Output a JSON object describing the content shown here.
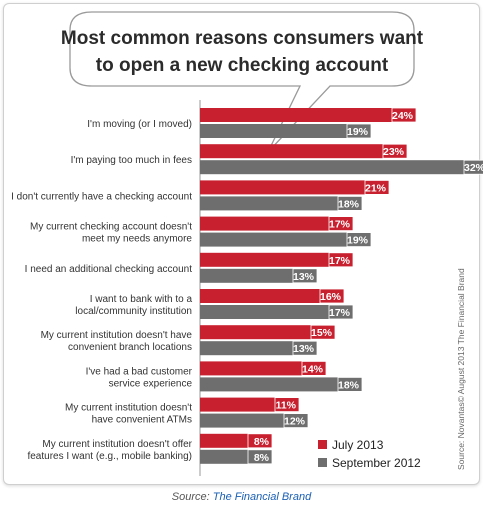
{
  "chart_data": {
    "type": "bar",
    "orientation": "horizontal",
    "title": "Most common reasons consumers want to open a new checking account",
    "title_lines": [
      "Most common reasons consumers want",
      "to open a new checking account"
    ],
    "categories": [
      [
        "I'm moving (or I moved)"
      ],
      [
        "I'm paying too much in fees"
      ],
      [
        "I don't currently have a checking account"
      ],
      [
        "My current checking account doesn't",
        "meet my needs anymore"
      ],
      [
        "I need an additional checking account"
      ],
      [
        "I want to bank with to a",
        "local/community institution"
      ],
      [
        "My current institution doesn't have",
        "convenient branch locations"
      ],
      [
        "I've had a bad customer",
        "service experience"
      ],
      [
        "My current institution doesn't",
        "have convenient ATMs"
      ],
      [
        "My current institution doesn't offer",
        "features I want (e.g., mobile banking)"
      ]
    ],
    "series": [
      {
        "name": "July 2013",
        "color": "#c8202f",
        "values": [
          24,
          23,
          21,
          17,
          17,
          16,
          15,
          14,
          11,
          8
        ]
      },
      {
        "name": "September 2012",
        "color": "#6e6e6e",
        "values": [
          19,
          32,
          18,
          19,
          13,
          17,
          13,
          18,
          12,
          8
        ]
      }
    ],
    "value_suffix": "%",
    "legend_position": "bottom-right",
    "source_note": "Source: Novantas© August 2013 The Financial Brand"
  },
  "caption": {
    "prefix": "Source: ",
    "link_text": "The Financial Brand"
  }
}
